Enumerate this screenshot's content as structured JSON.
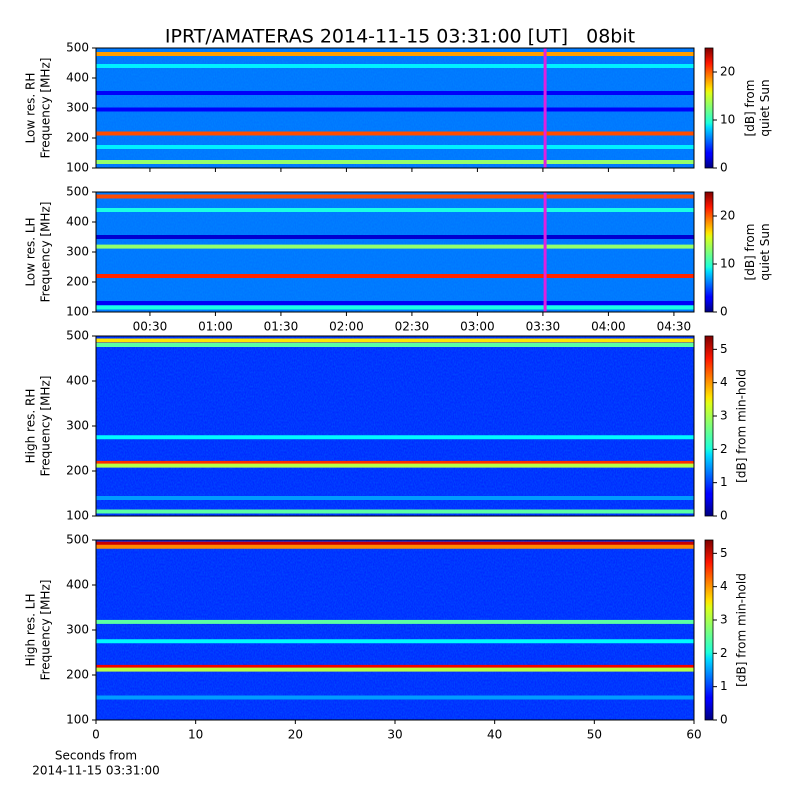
{
  "chart_data": [
    {
      "type": "heatmap",
      "title": "IPRT/AMATERAS 2014-11-15 03:31:00 [UT]   08bit",
      "ylabel": [
        "Low res. RH",
        "Frequency [MHz]"
      ],
      "ylim": [
        100,
        500
      ],
      "yticks": [
        100,
        200,
        300,
        400,
        500
      ],
      "xlim": [
        5.3,
        279.2
      ],
      "marker_time": 211,
      "marker_color": "#e020e0",
      "background": 6,
      "bands": [
        {
          "freq": 480,
          "value": 18
        },
        {
          "freq": 440,
          "value": 9
        },
        {
          "freq": 350,
          "value": 3
        },
        {
          "freq": 295,
          "value": 3
        },
        {
          "freq": 215,
          "value": 20
        },
        {
          "freq": 170,
          "value": 9
        },
        {
          "freq": 120,
          "value": 13
        }
      ],
      "clim": [
        0,
        25
      ],
      "cticks": [
        0,
        10,
        20
      ],
      "clabel": [
        "[dB] from",
        "quiet Sun"
      ]
    },
    {
      "type": "heatmap",
      "ylabel": [
        "Low res. LH",
        "Frequency [MHz]"
      ],
      "ylim": [
        100,
        500
      ],
      "yticks": [
        100,
        200,
        300,
        400,
        500
      ],
      "xlim": [
        5.3,
        279.2
      ],
      "marker_time": 211,
      "marker_color": "#e020e0",
      "xticks": [
        {
          "value": 30,
          "label": "00:30"
        },
        {
          "value": 60,
          "label": "01:00"
        },
        {
          "value": 90,
          "label": "01:30"
        },
        {
          "value": 120,
          "label": "02:00"
        },
        {
          "value": 150,
          "label": "02:30"
        },
        {
          "value": 180,
          "label": "03:00"
        },
        {
          "value": 210,
          "label": "03:30"
        },
        {
          "value": 240,
          "label": "04:00"
        },
        {
          "value": 270,
          "label": "04:30"
        }
      ],
      "background": 6,
      "bands": [
        {
          "freq": 485,
          "value": 20
        },
        {
          "freq": 440,
          "value": 10
        },
        {
          "freq": 350,
          "value": 2
        },
        {
          "freq": 318,
          "value": 13
        },
        {
          "freq": 220,
          "value": 21
        },
        {
          "freq": 130,
          "value": 3
        },
        {
          "freq": 115,
          "value": 10
        }
      ],
      "clim": [
        0,
        25
      ],
      "cticks": [
        0,
        10,
        20
      ],
      "clabel": [
        "[dB] from",
        "quiet Sun"
      ]
    },
    {
      "type": "heatmap",
      "ylabel": [
        "High res. RH",
        "Frequency [MHz]"
      ],
      "ylim": [
        100,
        500
      ],
      "yticks": [
        100,
        200,
        300,
        400,
        500
      ],
      "xlim": [
        0,
        60
      ],
      "background": 0.9,
      "bands": [
        {
          "freq": 490,
          "value": 3.5
        },
        {
          "freq": 480,
          "value": 2.5
        },
        {
          "freq": 275,
          "value": 2
        },
        {
          "freq": 218,
          "value": 4.5
        },
        {
          "freq": 212,
          "value": 3
        },
        {
          "freq": 140,
          "value": 1.5
        },
        {
          "freq": 110,
          "value": 2.5
        }
      ],
      "clim": [
        0,
        5.4
      ],
      "cticks": [
        0,
        1,
        2,
        3,
        4,
        5
      ],
      "clabel": [
        "[dB] from min-hold"
      ]
    },
    {
      "type": "heatmap",
      "ylabel": [
        "High res. LH",
        "Frequency [MHz]"
      ],
      "ylim": [
        100,
        500
      ],
      "yticks": [
        100,
        200,
        300,
        400,
        500
      ],
      "xlim": [
        0,
        60
      ],
      "xticks": [
        0,
        10,
        20,
        30,
        40,
        50,
        60
      ],
      "xlabel": [
        "Seconds from",
        "2014-11-15 03:31:00"
      ],
      "background": 0.9,
      "bands": [
        {
          "freq": 492,
          "value": 5
        },
        {
          "freq": 485,
          "value": 4
        },
        {
          "freq": 318,
          "value": 2.5
        },
        {
          "freq": 275,
          "value": 2
        },
        {
          "freq": 218,
          "value": 4.8
        },
        {
          "freq": 212,
          "value": 3
        },
        {
          "freq": 150,
          "value": 1.5
        }
      ],
      "clim": [
        0,
        5.4
      ],
      "cticks": [
        0,
        1,
        2,
        3,
        4,
        5
      ],
      "clabel": [
        "[dB] from min-hold"
      ]
    }
  ]
}
